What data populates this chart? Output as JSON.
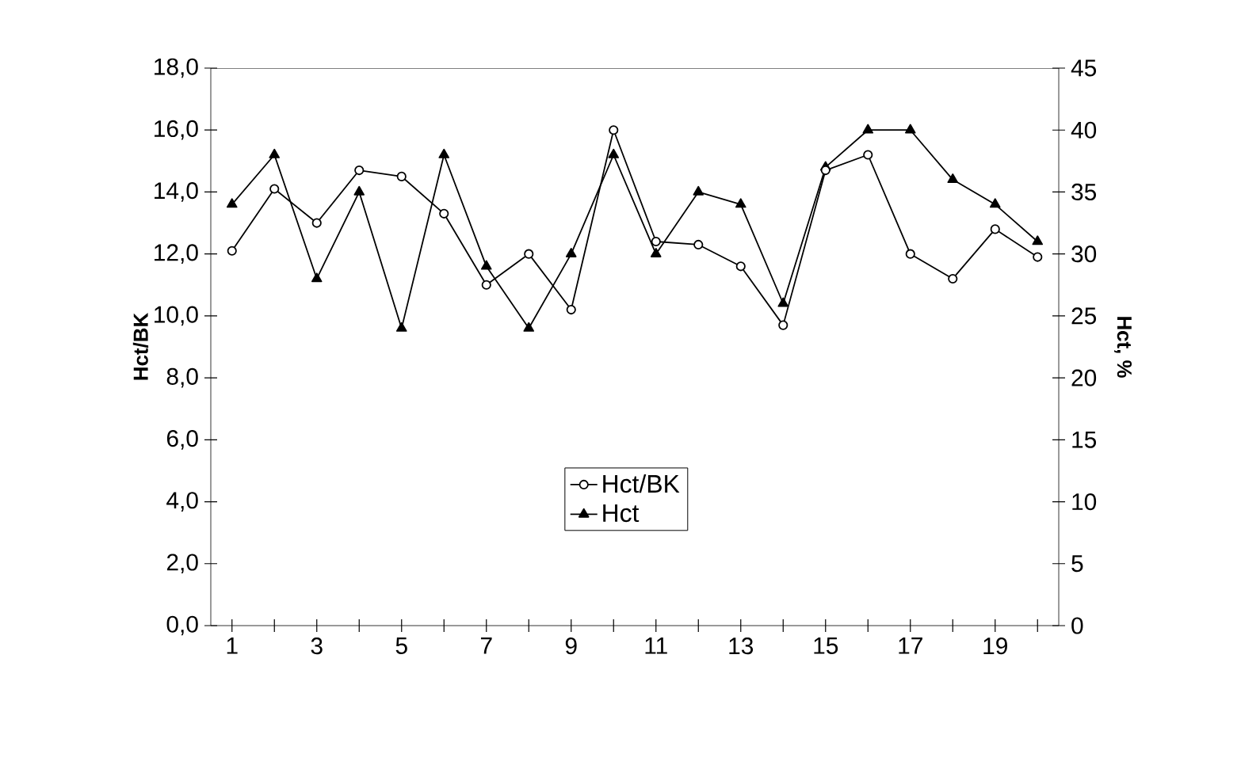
{
  "chart_data": {
    "type": "line",
    "ylabel": "Hct/BK",
    "y2label": "Hct, %",
    "categories": [
      "1",
      null,
      "3",
      null,
      "5",
      null,
      "7",
      null,
      "9",
      null,
      "11",
      null,
      "13",
      null,
      "15",
      null,
      "17",
      null,
      "19",
      null
    ],
    "series": [
      {
        "name": "Hct/BK",
        "color": "#000000",
        "marker": "circle",
        "values": [
          12.1,
          14.1,
          13.0,
          14.7,
          14.5,
          13.3,
          11.0,
          12.0,
          10.2,
          16.0,
          12.4,
          12.3,
          11.6,
          9.7,
          14.7,
          15.2,
          12.0,
          11.2,
          12.8,
          11.9
        ]
      },
      {
        "name": "Hct",
        "color": "#000000",
        "marker": "triangle",
        "axis": "y2",
        "values": [
          34,
          38,
          28,
          35,
          24,
          38,
          29,
          24,
          30,
          38,
          30,
          35,
          34,
          26,
          37,
          40,
          40,
          36,
          34,
          31
        ]
      }
    ],
    "ylim": [
      0,
      18
    ],
    "yticks": [
      {
        "value": 0,
        "label": "0,0"
      },
      {
        "value": 2,
        "label": "2,0"
      },
      {
        "value": 4,
        "label": "4,0"
      },
      {
        "value": 6,
        "label": "6,0"
      },
      {
        "value": 8,
        "label": "8,0"
      },
      {
        "value": 10,
        "label": "10,0"
      },
      {
        "value": 12,
        "label": "12,0"
      },
      {
        "value": 14,
        "label": "14,0"
      },
      {
        "value": 16,
        "label": "16,0"
      },
      {
        "value": 18,
        "label": "18,0"
      }
    ],
    "y2lim": [
      0,
      45
    ],
    "y2ticks": [
      0,
      5,
      10,
      15,
      20,
      25,
      30,
      35,
      40,
      45
    ],
    "legend": "bottom",
    "grid": false,
    "line_style": "solid"
  }
}
